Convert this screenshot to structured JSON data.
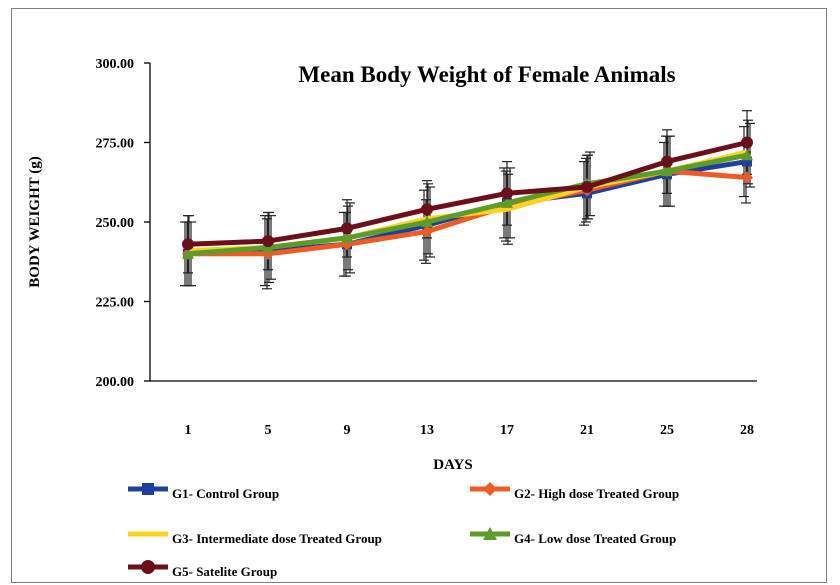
{
  "chart_data": {
    "type": "line",
    "title": "Mean Body Weight  of Female Animals",
    "xlabel": "DAYS",
    "ylabel": "BODY WEIGHT (g)",
    "categories": [
      "1",
      "5",
      "9",
      "13",
      "17",
      "21",
      "25",
      "28"
    ],
    "ylim": [
      200,
      300
    ],
    "yticks": [
      "200.00",
      "225.00",
      "250.00",
      "275.00",
      "300.00"
    ],
    "grid": false,
    "error_bars": true,
    "legend_position": "bottom",
    "series": [
      {
        "name": "G1- Control Group",
        "color": "#1f3f9f",
        "marker": "square",
        "values": [
          240,
          241,
          243,
          249,
          256,
          259,
          265,
          269
        ],
        "errors": [
          10,
          11,
          10,
          11,
          11,
          10,
          10,
          11
        ]
      },
      {
        "name": "G2- High dose Treated Group",
        "color": "#f05a23",
        "marker": "diamond",
        "values": [
          240,
          240,
          243,
          247,
          255,
          260,
          266,
          264
        ],
        "errors": [
          10,
          11,
          10,
          10,
          11,
          10,
          11,
          8
        ]
      },
      {
        "name": "G3- Intermediate dose Treated Group",
        "color": "#ffd21f",
        "marker": "none",
        "values": [
          241,
          242,
          245,
          251,
          254,
          261,
          266,
          272
        ],
        "errors": [
          11,
          11,
          10,
          11,
          11,
          10,
          11,
          10
        ]
      },
      {
        "name": "G4- Low dose Treated Group",
        "color": "#5a9e28",
        "marker": "triangle",
        "values": [
          240,
          242,
          245,
          250,
          256,
          262,
          266,
          271
        ],
        "errors": [
          10,
          10,
          11,
          11,
          11,
          10,
          11,
          10
        ]
      },
      {
        "name": "G5- Satelite Group",
        "color": "#6b0f1a",
        "marker": "circle",
        "values": [
          243,
          244,
          248,
          254,
          259,
          261,
          269,
          275
        ],
        "errors": [
          9,
          9,
          9,
          9,
          10,
          10,
          10,
          10
        ]
      }
    ]
  }
}
